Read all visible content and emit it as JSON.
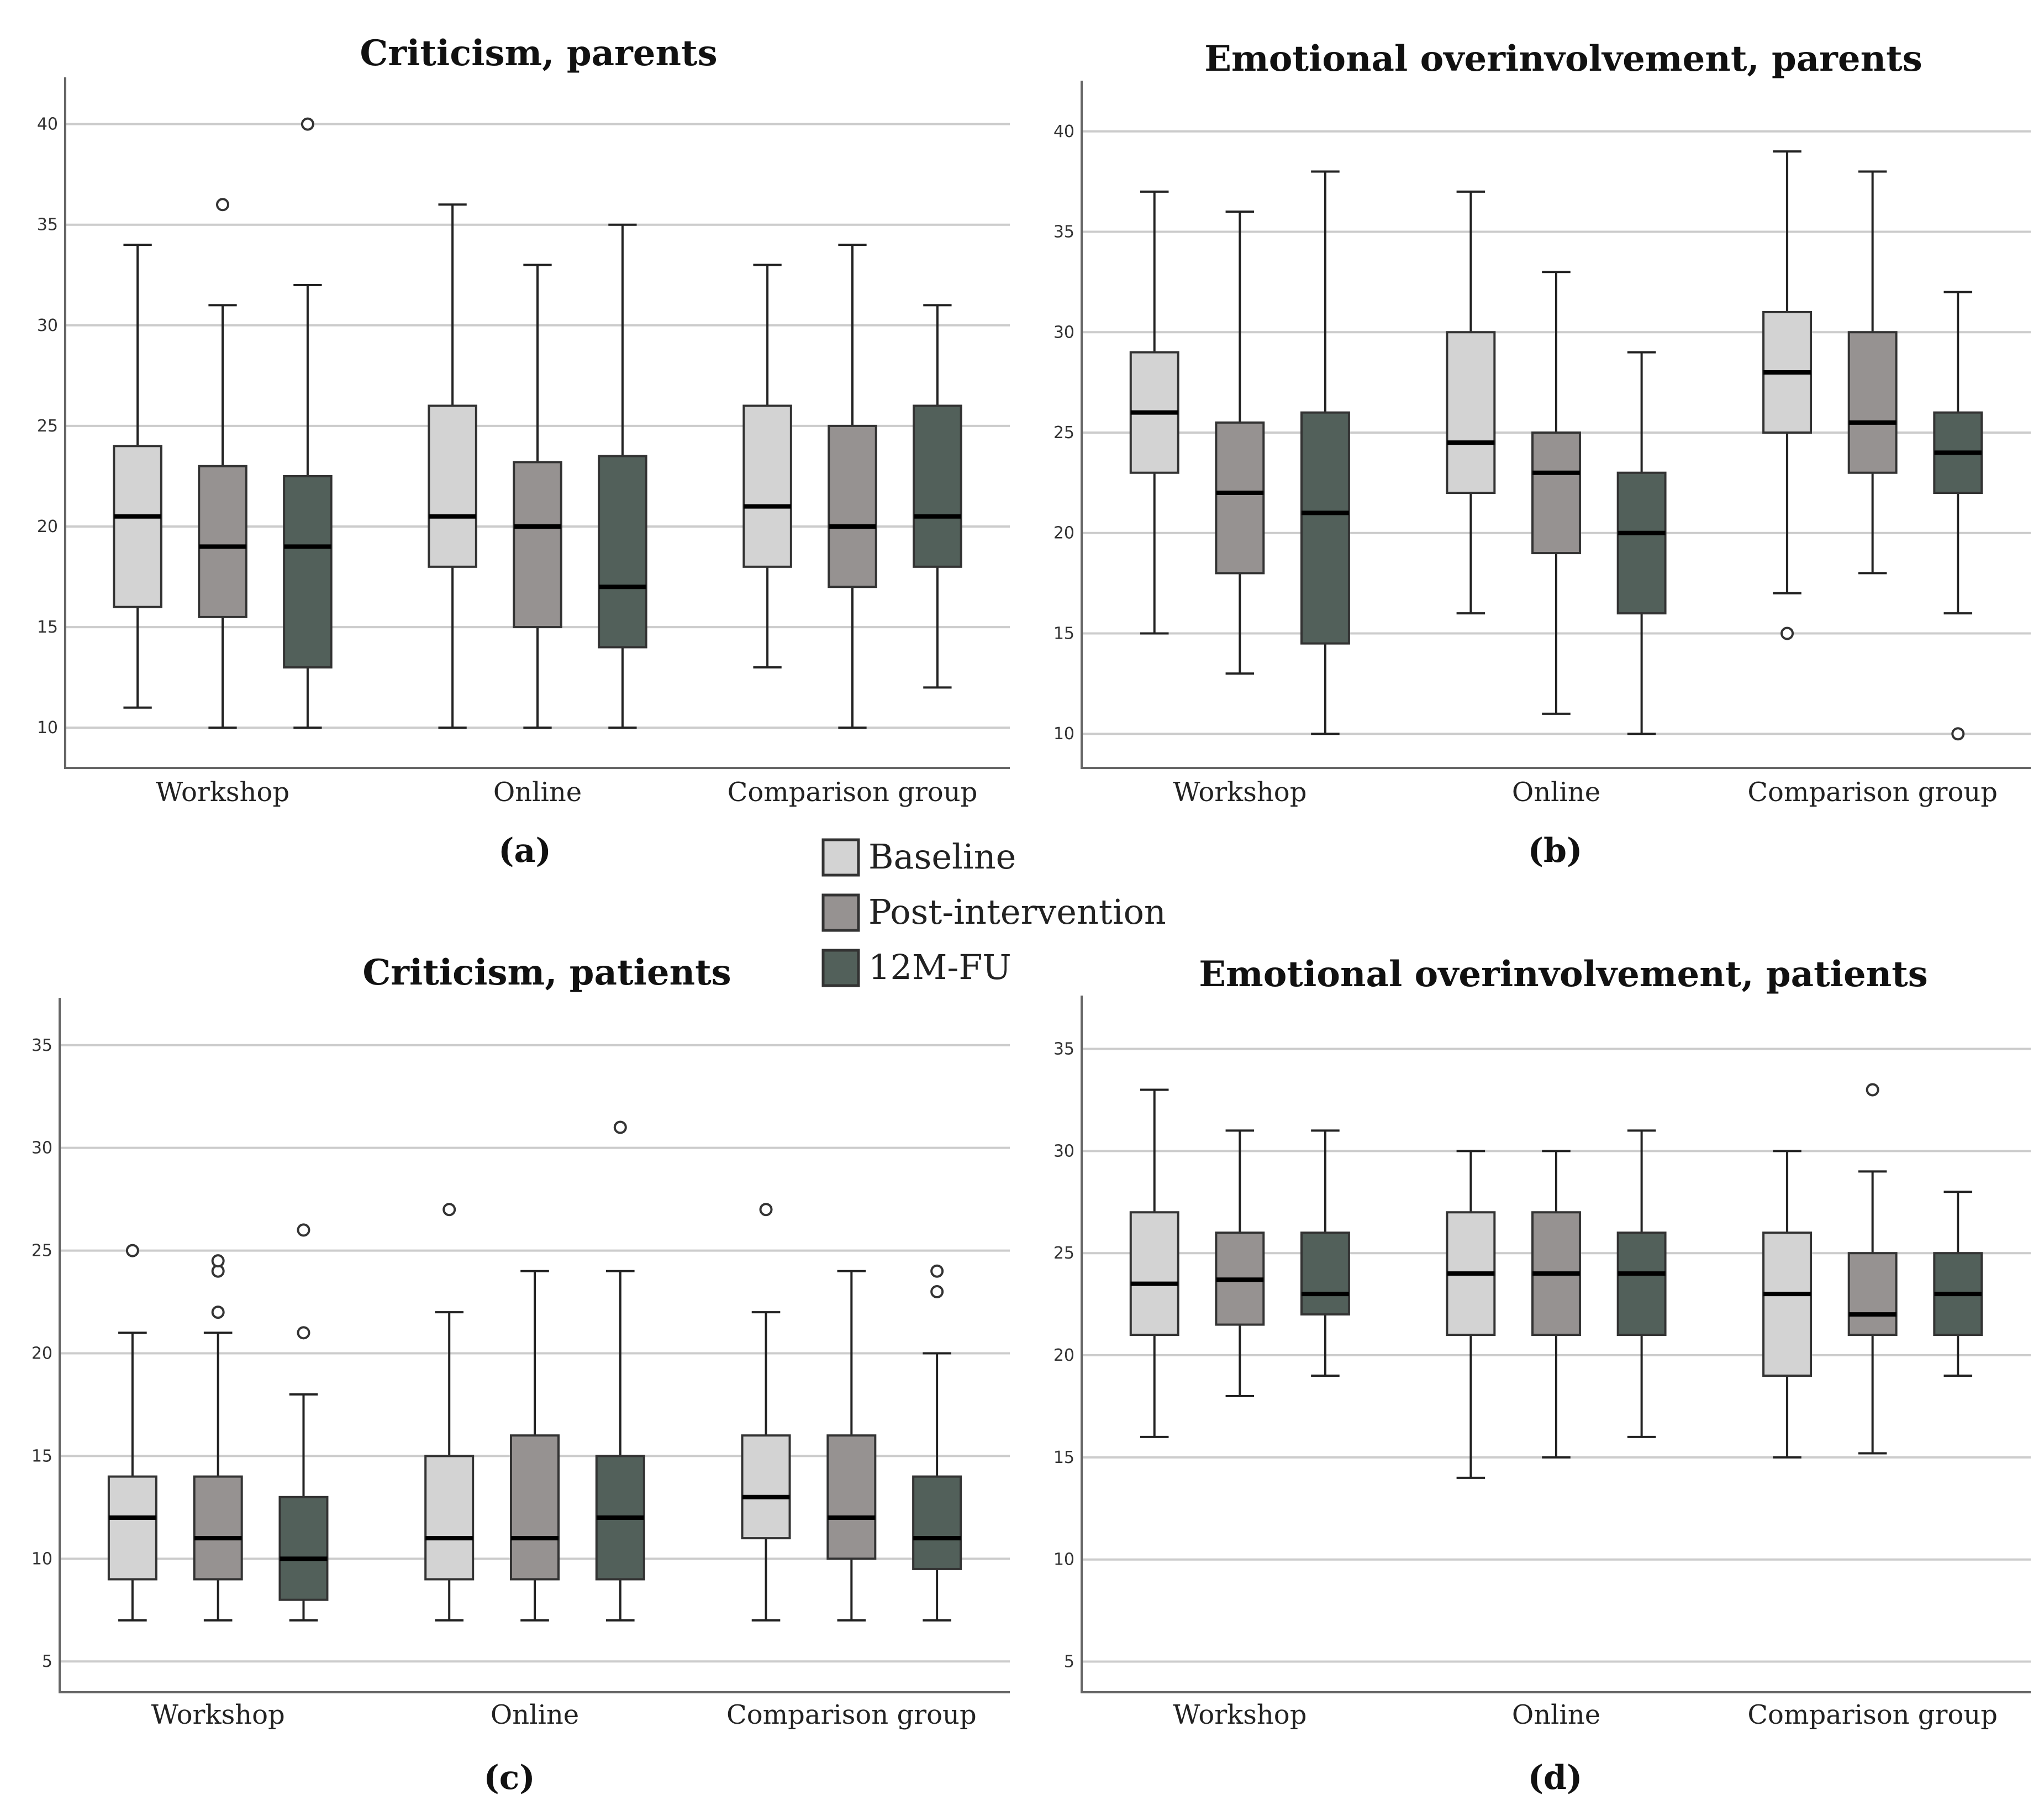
{
  "legend": {
    "entries": [
      {
        "name": "Baseline",
        "color": "#d3d3d3"
      },
      {
        "name": "Post-intervention",
        "color": "#969291"
      },
      {
        "name": "12M-FU",
        "color": "#52605a"
      }
    ]
  },
  "chart_data": [
    {
      "type": "box",
      "title": "Criticism, parents",
      "panel_label": "(a)",
      "categories": [
        "Workshop",
        "Online",
        "Comparison group"
      ],
      "yticks": [
        10,
        15,
        20,
        25,
        30,
        35,
        40
      ],
      "ylim": [
        8,
        41.5
      ],
      "series": [
        {
          "name": "Baseline",
          "boxes": [
            {
              "min": 11,
              "q1": 16,
              "median": 20.5,
              "q3": 24,
              "max": 34,
              "outliers": []
            },
            {
              "min": 10,
              "q1": 18,
              "median": 20.5,
              "q3": 26,
              "max": 36,
              "outliers": []
            },
            {
              "min": 13,
              "q1": 18,
              "median": 21,
              "q3": 26,
              "max": 33,
              "outliers": []
            }
          ]
        },
        {
          "name": "Post-intervention",
          "boxes": [
            {
              "min": 10,
              "q1": 15.5,
              "median": 19,
              "q3": 23,
              "max": 31,
              "outliers": [
                36
              ]
            },
            {
              "min": 10,
              "q1": 15,
              "median": 20,
              "q3": 23.2,
              "max": 33,
              "outliers": []
            },
            {
              "min": 10,
              "q1": 17,
              "median": 20,
              "q3": 25,
              "max": 34,
              "outliers": []
            }
          ]
        },
        {
          "name": "12M-FU",
          "boxes": [
            {
              "min": 10,
              "q1": 13,
              "median": 19,
              "q3": 22.5,
              "max": 32,
              "outliers": [
                40
              ]
            },
            {
              "min": 10,
              "q1": 14,
              "median": 17,
              "q3": 23.5,
              "max": 35,
              "outliers": []
            },
            {
              "min": 12,
              "q1": 18,
              "median": 20.5,
              "q3": 26,
              "max": 31,
              "outliers": []
            }
          ]
        }
      ]
    },
    {
      "type": "box",
      "title": "Emotional overinvolvement, parents",
      "panel_label": "(b)",
      "categories": [
        "Workshop",
        "Online",
        "Comparison group"
      ],
      "yticks": [
        10,
        15,
        20,
        25,
        30,
        35,
        40
      ],
      "ylim": [
        8.3,
        41.7
      ],
      "series": [
        {
          "name": "Baseline",
          "boxes": [
            {
              "min": 15,
              "q1": 23,
              "median": 26,
              "q3": 29,
              "max": 37,
              "outliers": []
            },
            {
              "min": 16,
              "q1": 22,
              "median": 24.5,
              "q3": 30,
              "max": 37,
              "outliers": []
            },
            {
              "min": 17,
              "q1": 25,
              "median": 28,
              "q3": 31,
              "max": 39,
              "outliers": [
                15
              ]
            }
          ]
        },
        {
          "name": "Post-intervention",
          "boxes": [
            {
              "min": 13,
              "q1": 18,
              "median": 22,
              "q3": 25.5,
              "max": 36,
              "outliers": []
            },
            {
              "min": 11,
              "q1": 19,
              "median": 23,
              "q3": 25,
              "max": 33,
              "outliers": []
            },
            {
              "min": 18,
              "q1": 23,
              "median": 25.5,
              "q3": 30,
              "max": 38,
              "outliers": []
            }
          ]
        },
        {
          "name": "12M-FU",
          "boxes": [
            {
              "min": 10,
              "q1": 14.5,
              "median": 21,
              "q3": 26,
              "max": 38,
              "outliers": []
            },
            {
              "min": 10,
              "q1": 16,
              "median": 20,
              "q3": 23,
              "max": 29,
              "outliers": []
            },
            {
              "min": 16,
              "q1": 22,
              "median": 24,
              "q3": 26,
              "max": 32,
              "outliers": [
                10
              ]
            }
          ]
        }
      ]
    },
    {
      "type": "box",
      "title": "Criticism, patients",
      "panel_label": "(c)",
      "categories": [
        "Workshop",
        "Online",
        "Comparison group"
      ],
      "yticks": [
        5,
        10,
        15,
        20,
        25,
        30,
        35
      ],
      "ylim": [
        3.5,
        36.5
      ],
      "series": [
        {
          "name": "Baseline",
          "boxes": [
            {
              "min": 7,
              "q1": 9,
              "median": 12,
              "q3": 14,
              "max": 21,
              "outliers": [
                25
              ]
            },
            {
              "min": 7,
              "q1": 9,
              "median": 11,
              "q3": 15,
              "max": 22,
              "outliers": [
                27
              ]
            },
            {
              "min": 7,
              "q1": 11,
              "median": 13,
              "q3": 16,
              "max": 22,
              "outliers": [
                27
              ]
            }
          ]
        },
        {
          "name": "Post-intervention",
          "boxes": [
            {
              "min": 7,
              "q1": 9,
              "median": 11,
              "q3": 14,
              "max": 21,
              "outliers": [
                22,
                24,
                24.5
              ]
            },
            {
              "min": 7,
              "q1": 9,
              "median": 11,
              "q3": 16,
              "max": 24,
              "outliers": []
            },
            {
              "min": 7,
              "q1": 10,
              "median": 12,
              "q3": 16,
              "max": 24,
              "outliers": []
            }
          ]
        },
        {
          "name": "12M-FU",
          "boxes": [
            {
              "min": 7,
              "q1": 8,
              "median": 10,
              "q3": 13,
              "max": 18,
              "outliers": [
                21,
                26
              ]
            },
            {
              "min": 7,
              "q1": 9,
              "median": 12,
              "q3": 15,
              "max": 24,
              "outliers": [
                31
              ]
            },
            {
              "min": 7,
              "q1": 9.5,
              "median": 11,
              "q3": 14,
              "max": 20,
              "outliers": [
                23,
                24
              ]
            }
          ]
        }
      ]
    },
    {
      "type": "box",
      "title": "Emotional overinvolvement, patients",
      "panel_label": "(d)",
      "categories": [
        "Workshop",
        "Online",
        "Comparison group"
      ],
      "yticks": [
        5,
        10,
        15,
        20,
        25,
        30,
        35
      ],
      "ylim": [
        3.5,
        36.8
      ],
      "series": [
        {
          "name": "Baseline",
          "boxes": [
            {
              "min": 16,
              "q1": 21,
              "median": 23.5,
              "q3": 27,
              "max": 33,
              "outliers": []
            },
            {
              "min": 14,
              "q1": 21,
              "median": 24,
              "q3": 27,
              "max": 30,
              "outliers": []
            },
            {
              "min": 15,
              "q1": 19,
              "median": 23,
              "q3": 26,
              "max": 30,
              "outliers": []
            }
          ]
        },
        {
          "name": "Post-intervention",
          "boxes": [
            {
              "min": 18,
              "q1": 21.5,
              "median": 23.7,
              "q3": 26,
              "max": 31,
              "outliers": []
            },
            {
              "min": 15,
              "q1": 21,
              "median": 24,
              "q3": 27,
              "max": 30,
              "outliers": []
            },
            {
              "min": 15.2,
              "q1": 21,
              "median": 22,
              "q3": 25,
              "max": 29,
              "outliers": [
                33
              ]
            }
          ]
        },
        {
          "name": "12M-FU",
          "boxes": [
            {
              "min": 19,
              "q1": 22,
              "median": 23,
              "q3": 26,
              "max": 31,
              "outliers": []
            },
            {
              "min": 16,
              "q1": 21,
              "median": 24,
              "q3": 26,
              "max": 31,
              "outliers": []
            },
            {
              "min": 19,
              "q1": 21,
              "median": 23,
              "q3": 25,
              "max": 28,
              "outliers": []
            }
          ]
        }
      ]
    }
  ]
}
